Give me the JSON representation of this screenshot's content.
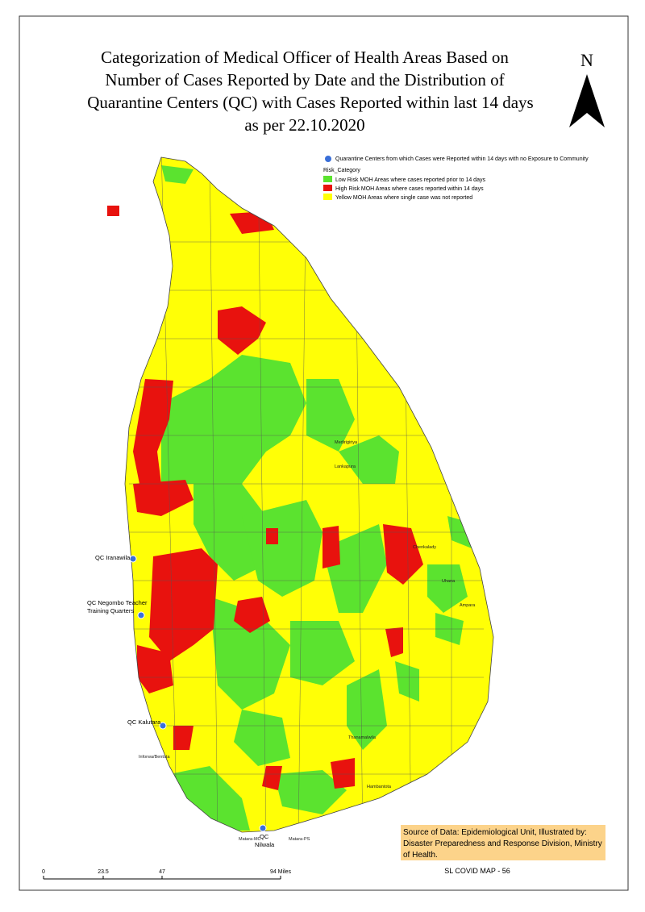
{
  "title": {
    "lines": [
      "Categorization of Medical Officer of Health Areas Based on",
      "Number of Cases Reported by Date and the Distribution of",
      "Quarantine Centers (QC) with Cases Reported within last 14 days",
      "as per 22.10.2020"
    ]
  },
  "north_arrow": "N",
  "legend": {
    "quarantine": "Quarantine Centers from which Cases were Reported within 14 days with no Exposure to Community",
    "heading": "Risk_Category",
    "items": [
      {
        "label": "Low Risk MOH Areas where cases reported prior to 14 days",
        "color": "#5be32f"
      },
      {
        "label": "High Risk MOH Areas where cases reported within 14 days",
        "color": "#e8120e"
      },
      {
        "label": "Yellow MOH Areas where single case was not reported",
        "color": "#ffff06"
      }
    ]
  },
  "quarantine_centers": [
    {
      "lines": [
        "QC Iranawila"
      ]
    },
    {
      "lines": [
        "QC Negombo Teacher",
        "Training Quarters"
      ]
    },
    {
      "lines": [
        "QC Kalutara"
      ]
    },
    {
      "lines": [
        "QC",
        "Nilwala"
      ]
    }
  ],
  "places": [
    "Medirigiriya",
    "Lankapura",
    "Chenkalady",
    "Uhana",
    "Ampara",
    "Thanamalwila",
    "Hambantota",
    "Inforwa/Bentota",
    "Matara-MC",
    "Matara-PS"
  ],
  "scale_bar": [
    "0",
    "23.5",
    "47",
    "94 Miles"
  ],
  "source": [
    "Source of Data: Epidemiological Unit, Illustrated by:",
    "Disaster Preparedness and Response Division, Ministry",
    "of Health."
  ],
  "footer": "SL COVID MAP - 56"
}
